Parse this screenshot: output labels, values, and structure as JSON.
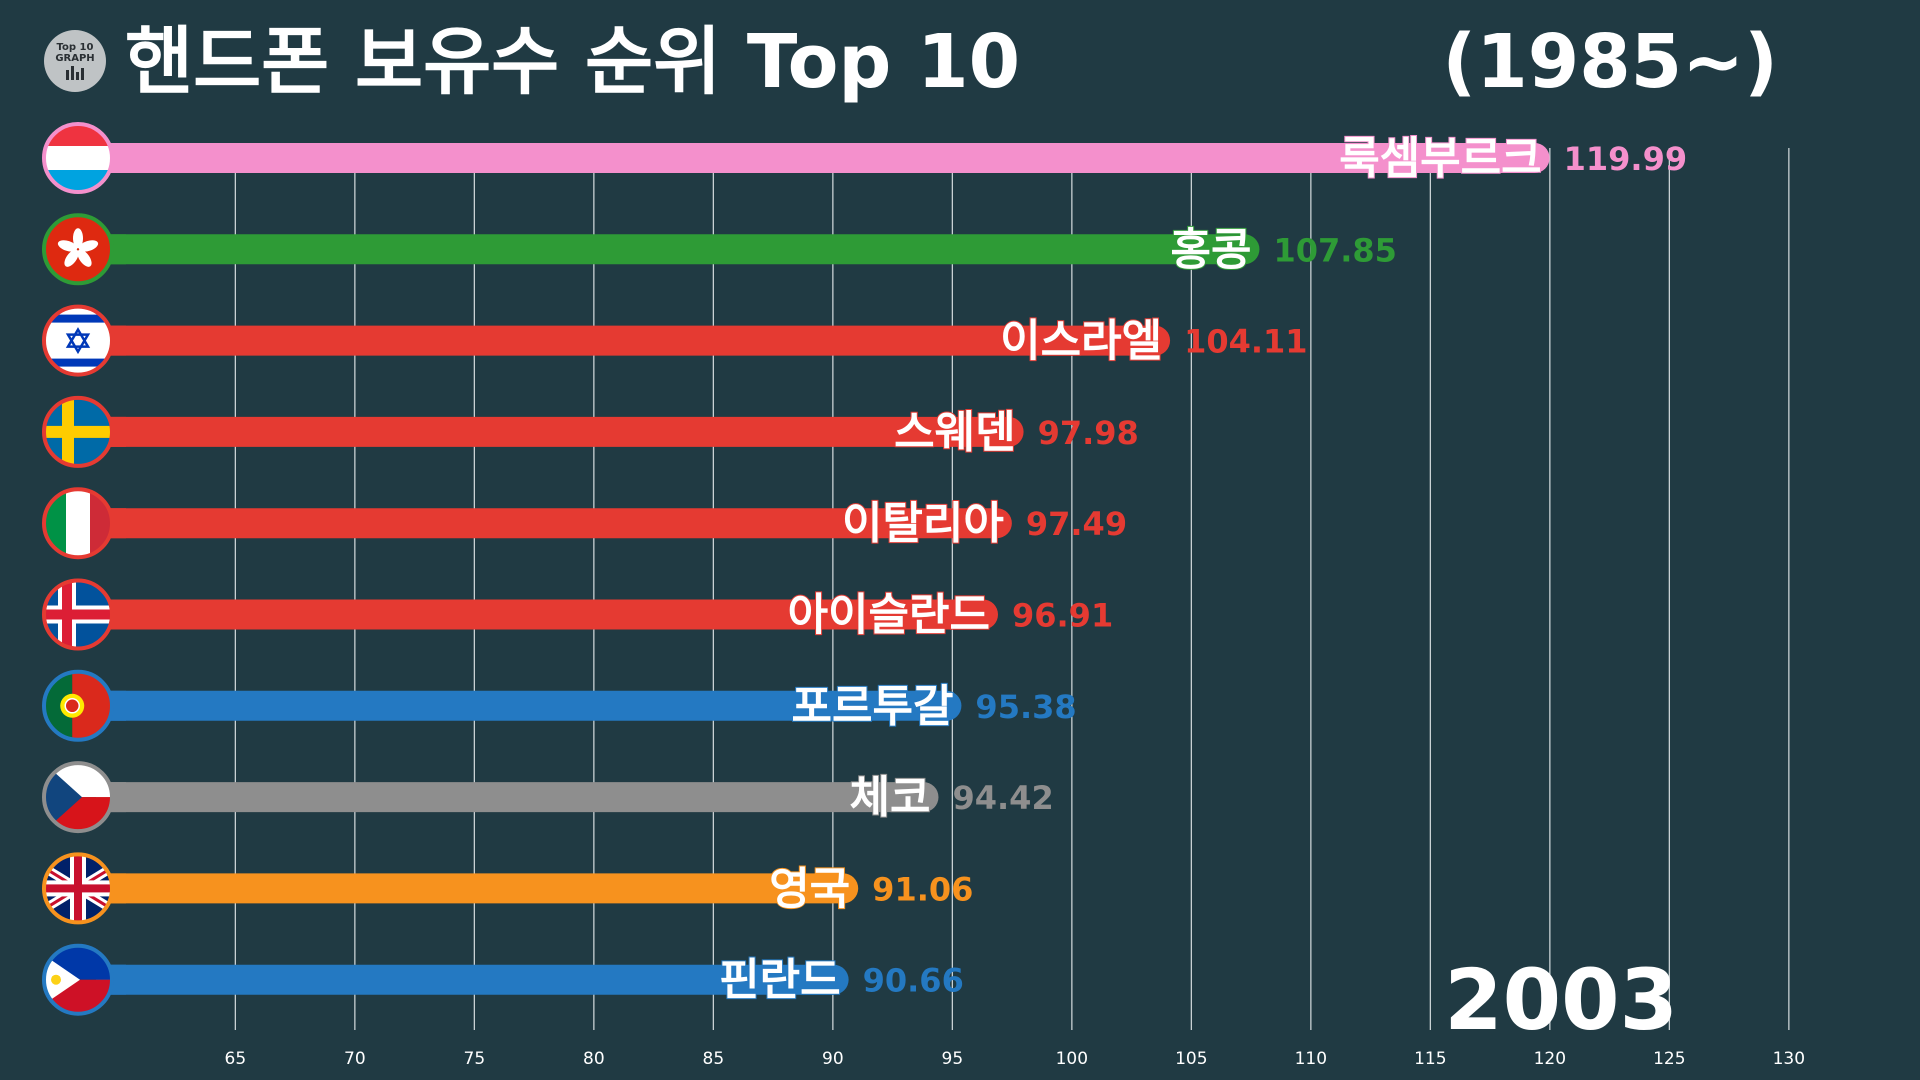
{
  "header": {
    "logo_text_1": "Top 10",
    "logo_text_2": "GRAPH",
    "title": "핸드폰 보유수 순위 Top 10",
    "subtitle": "(1985~)"
  },
  "year": "2003",
  "colors": {
    "background": "#203a43",
    "gridline": "#c9d1d4",
    "tick_text": "#ffffff"
  },
  "chart_data": {
    "type": "bar",
    "orientation": "horizontal",
    "title": "핸드폰 보유수 순위 Top 10",
    "subtitle": "(1985~)",
    "xlim": [
      58.5,
      130
    ],
    "xticks": [
      65,
      70,
      75,
      80,
      85,
      90,
      95,
      100,
      105,
      110,
      115,
      120,
      125,
      130
    ],
    "grid": true,
    "categories": [
      "룩셈부르크",
      "홍콩",
      "이스라엘",
      "스웨덴",
      "이탈리아",
      "아이슬란드",
      "포르투갈",
      "체코",
      "영국",
      "핀란드"
    ],
    "values": [
      119.99,
      107.85,
      104.11,
      97.98,
      97.49,
      96.91,
      95.38,
      94.42,
      91.06,
      90.66
    ],
    "value_labels": [
      "119.99",
      "107.85",
      "104.11",
      "97.98",
      "97.49",
      "96.91",
      "95.38",
      "94.42",
      "91.06",
      "90.66"
    ],
    "bar_colors": [
      "#f490cc",
      "#2e9b36",
      "#e53a32",
      "#e53a32",
      "#e53a32",
      "#e53a32",
      "#2479c2",
      "#8e8e8e",
      "#f7921e",
      "#2479c2"
    ],
    "flags": [
      "luxembourg-flag",
      "hong-kong-flag",
      "israel-flag",
      "sweden-flag",
      "italy-flag",
      "iceland-flag",
      "portugal-flag",
      "czech-flag",
      "uk-flag",
      "philippines-flag"
    ]
  }
}
